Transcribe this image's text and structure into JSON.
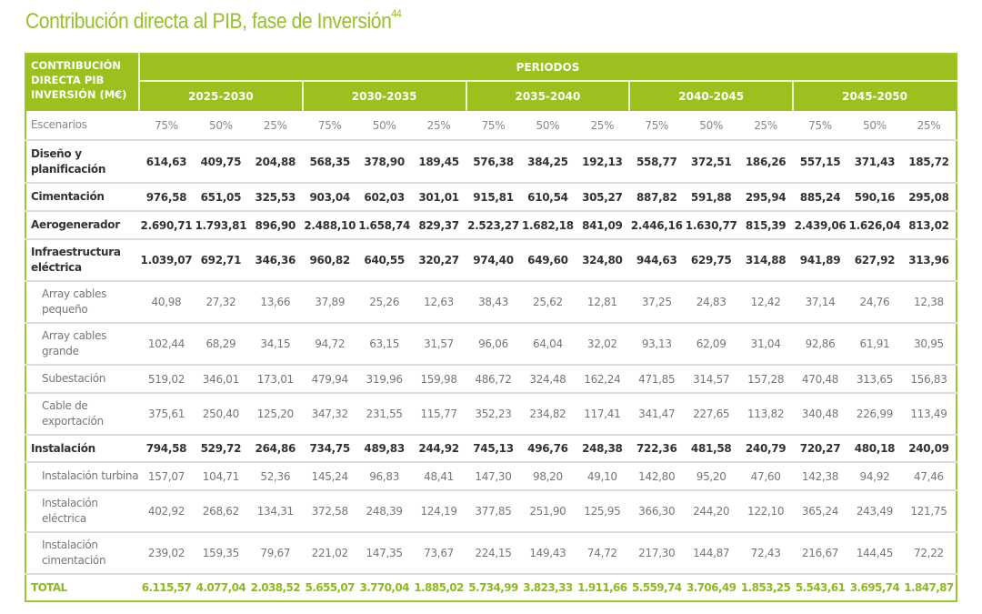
{
  "title": "Contribución directa al PIB, fase de Inversión",
  "title_footnote": "44",
  "colors": {
    "accent": "#9cc11f",
    "total_text": "#8dbb1f"
  },
  "table": {
    "corner_header": "CONTRIBUCIÓN DIRECTA PIB INVERSIÓN (M€)",
    "group_header": "PERIODOS",
    "periods": [
      "2025-2030",
      "2030-2035",
      "2035-2040",
      "2040-2045",
      "2045-2050"
    ],
    "scenario_label": "Escenarios",
    "scenarios": [
      "75%",
      "50%",
      "25%",
      "75%",
      "50%",
      "25%",
      "75%",
      "50%",
      "25%",
      "75%",
      "50%",
      "25%",
      "75%",
      "50%",
      "25%"
    ],
    "rows": [
      {
        "label": "Diseño y planificación",
        "type": "bold",
        "h": 45,
        "values": [
          "614,63",
          "409,75",
          "204,88",
          "568,35",
          "378,90",
          "189,45",
          "576,38",
          "384,25",
          "192,13",
          "558,77",
          "372,51",
          "186,26",
          "557,15",
          "371,43",
          "185,72"
        ]
      },
      {
        "label": "Cimentación",
        "type": "bold",
        "h": 29,
        "values": [
          "976,58",
          "651,05",
          "325,53",
          "903,04",
          "602,03",
          "301,01",
          "915,81",
          "610,54",
          "305,27",
          "887,82",
          "591,88",
          "295,94",
          "885,24",
          "590,16",
          "295,08"
        ]
      },
      {
        "label": "Aerogenerador",
        "type": "bold",
        "h": 29,
        "values": [
          "2.690,71",
          "1.793,81",
          "896,90",
          "2.488,10",
          "1.658,74",
          "829,37",
          "2.523,27",
          "1.682,18",
          "841,09",
          "2.446,16",
          "1.630,77",
          "815,39",
          "2.439,06",
          "1.626,04",
          "813,02"
        ]
      },
      {
        "label": "Infraestructura eléctrica",
        "type": "bold",
        "h": 44,
        "values": [
          "1.039,07",
          "692,71",
          "346,36",
          "960,82",
          "640,55",
          "320,27",
          "974,40",
          "649,60",
          "324,80",
          "944,63",
          "629,75",
          "314,88",
          "941,89",
          "627,92",
          "313,96"
        ]
      },
      {
        "label": "Array cables pequeño",
        "type": "sub",
        "h": 44,
        "values": [
          "40,98",
          "27,32",
          "13,66",
          "37,89",
          "25,26",
          "12,63",
          "38,43",
          "25,62",
          "12,81",
          "37,25",
          "24,83",
          "12,42",
          "37,14",
          "24,76",
          "12,38"
        ]
      },
      {
        "label": "Array cables grande",
        "type": "sub",
        "h": 44,
        "values": [
          "102,44",
          "68,29",
          "34,15",
          "94,72",
          "63,15",
          "31,57",
          "96,06",
          "64,04",
          "32,02",
          "93,13",
          "62,09",
          "31,04",
          "92,86",
          "61,91",
          "30,95"
        ]
      },
      {
        "label": "Subestación",
        "type": "sub",
        "h": 29,
        "values": [
          "519,02",
          "346,01",
          "173,01",
          "479,94",
          "319,96",
          "159,98",
          "486,72",
          "324,48",
          "162,24",
          "471,85",
          "314,57",
          "157,28",
          "470,48",
          "313,65",
          "156,83"
        ]
      },
      {
        "label": "Cable de exportación",
        "type": "sub",
        "h": 44,
        "values": [
          "375,61",
          "250,40",
          "125,20",
          "347,32",
          "231,55",
          "115,77",
          "352,23",
          "234,82",
          "117,41",
          "341,47",
          "227,65",
          "113,82",
          "340,48",
          "226,99",
          "113,49"
        ]
      },
      {
        "label": "Instalación",
        "type": "bold",
        "h": 28,
        "values": [
          "794,58",
          "529,72",
          "264,86",
          "734,75",
          "489,83",
          "244,92",
          "745,13",
          "496,76",
          "248,38",
          "722,36",
          "481,58",
          "240,79",
          "720,27",
          "480,18",
          "240,09"
        ]
      },
      {
        "label": "Instalación turbina",
        "type": "sub",
        "h": 29,
        "values": [
          "157,07",
          "104,71",
          "52,36",
          "145,24",
          "96,83",
          "48,41",
          "147,30",
          "98,20",
          "49,10",
          "142,80",
          "95,20",
          "47,60",
          "142,38",
          "94,92",
          "47,46"
        ]
      },
      {
        "label": "Instalación eléctrica",
        "type": "sub",
        "h": 44,
        "values": [
          "402,92",
          "268,62",
          "134,31",
          "372,58",
          "248,39",
          "124,19",
          "377,85",
          "251,90",
          "125,95",
          "366,30",
          "244,20",
          "122,10",
          "365,24",
          "243,49",
          "121,75"
        ]
      },
      {
        "label": "Instalación cimentación",
        "type": "sub",
        "h": 44,
        "values": [
          "239,02",
          "159,35",
          "79,67",
          "221,02",
          "147,35",
          "73,67",
          "224,15",
          "149,43",
          "74,72",
          "217,30",
          "144,87",
          "72,43",
          "216,67",
          "144,45",
          "72,22"
        ]
      }
    ],
    "total": {
      "label": "TOTAL",
      "values": [
        "6.115,57",
        "4.077,04",
        "2.038,52",
        "5.655,07",
        "3.770,04",
        "1.885,02",
        "5.734,99",
        "3.823,33",
        "1.911,66",
        "5.559,74",
        "3.706,49",
        "1.853,25",
        "5.543,61",
        "3.695,74",
        "1.847,87"
      ]
    }
  }
}
